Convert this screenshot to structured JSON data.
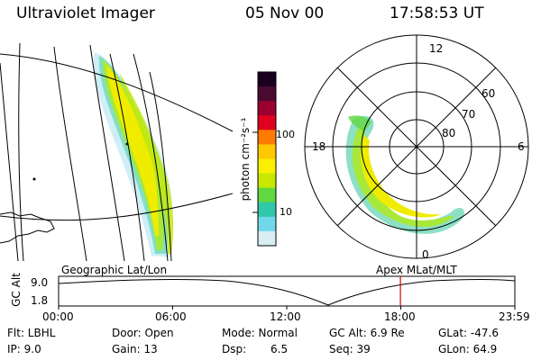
{
  "header": {
    "instrument": "Ultraviolet Imager",
    "date": "05 Nov 00",
    "time": "17:58:53 UT"
  },
  "colorbar": {
    "unit": "photon cm⁻²s⁻¹",
    "ticks": [
      "100",
      "10"
    ],
    "colors": [
      "#1a0020",
      "#4a0a30",
      "#9a0030",
      "#e00020",
      "#ff7a00",
      "#ffc800",
      "#f8f000",
      "#c8e800",
      "#60d840",
      "#30c8a8",
      "#70d8e8",
      "#d8eef4"
    ]
  },
  "polar_map": {
    "mlt_labels": [
      "12",
      "18",
      "6",
      "0"
    ],
    "mlat_labels": [
      "60",
      "70",
      "80"
    ]
  },
  "altitude_panel": {
    "left_title": "Geographic Lat/Lon",
    "right_title": "Apex MLat/MLT",
    "axis_label": "GC Alt",
    "y_ticks": [
      "9.0",
      "1.8"
    ],
    "x_ticks": [
      "00:00",
      "06:00",
      "12:00",
      "18:00",
      "23:59"
    ],
    "current_time_fraction": 0.7493,
    "marker_color": "#e00000"
  },
  "footer": {
    "filter": "Flt: LBHL",
    "ip": "IP:  9.0",
    "door": "Door: Open",
    "gain": "Gain: 13",
    "mode": "Mode: Normal",
    "dsp_label": "Dsp:",
    "dsp_value": "6.5",
    "gc_alt": "GC Alt: 6.9 Re",
    "seq": "Seq: 39",
    "glat": "GLat: -47.6",
    "glon": "GLon:  64.9"
  }
}
